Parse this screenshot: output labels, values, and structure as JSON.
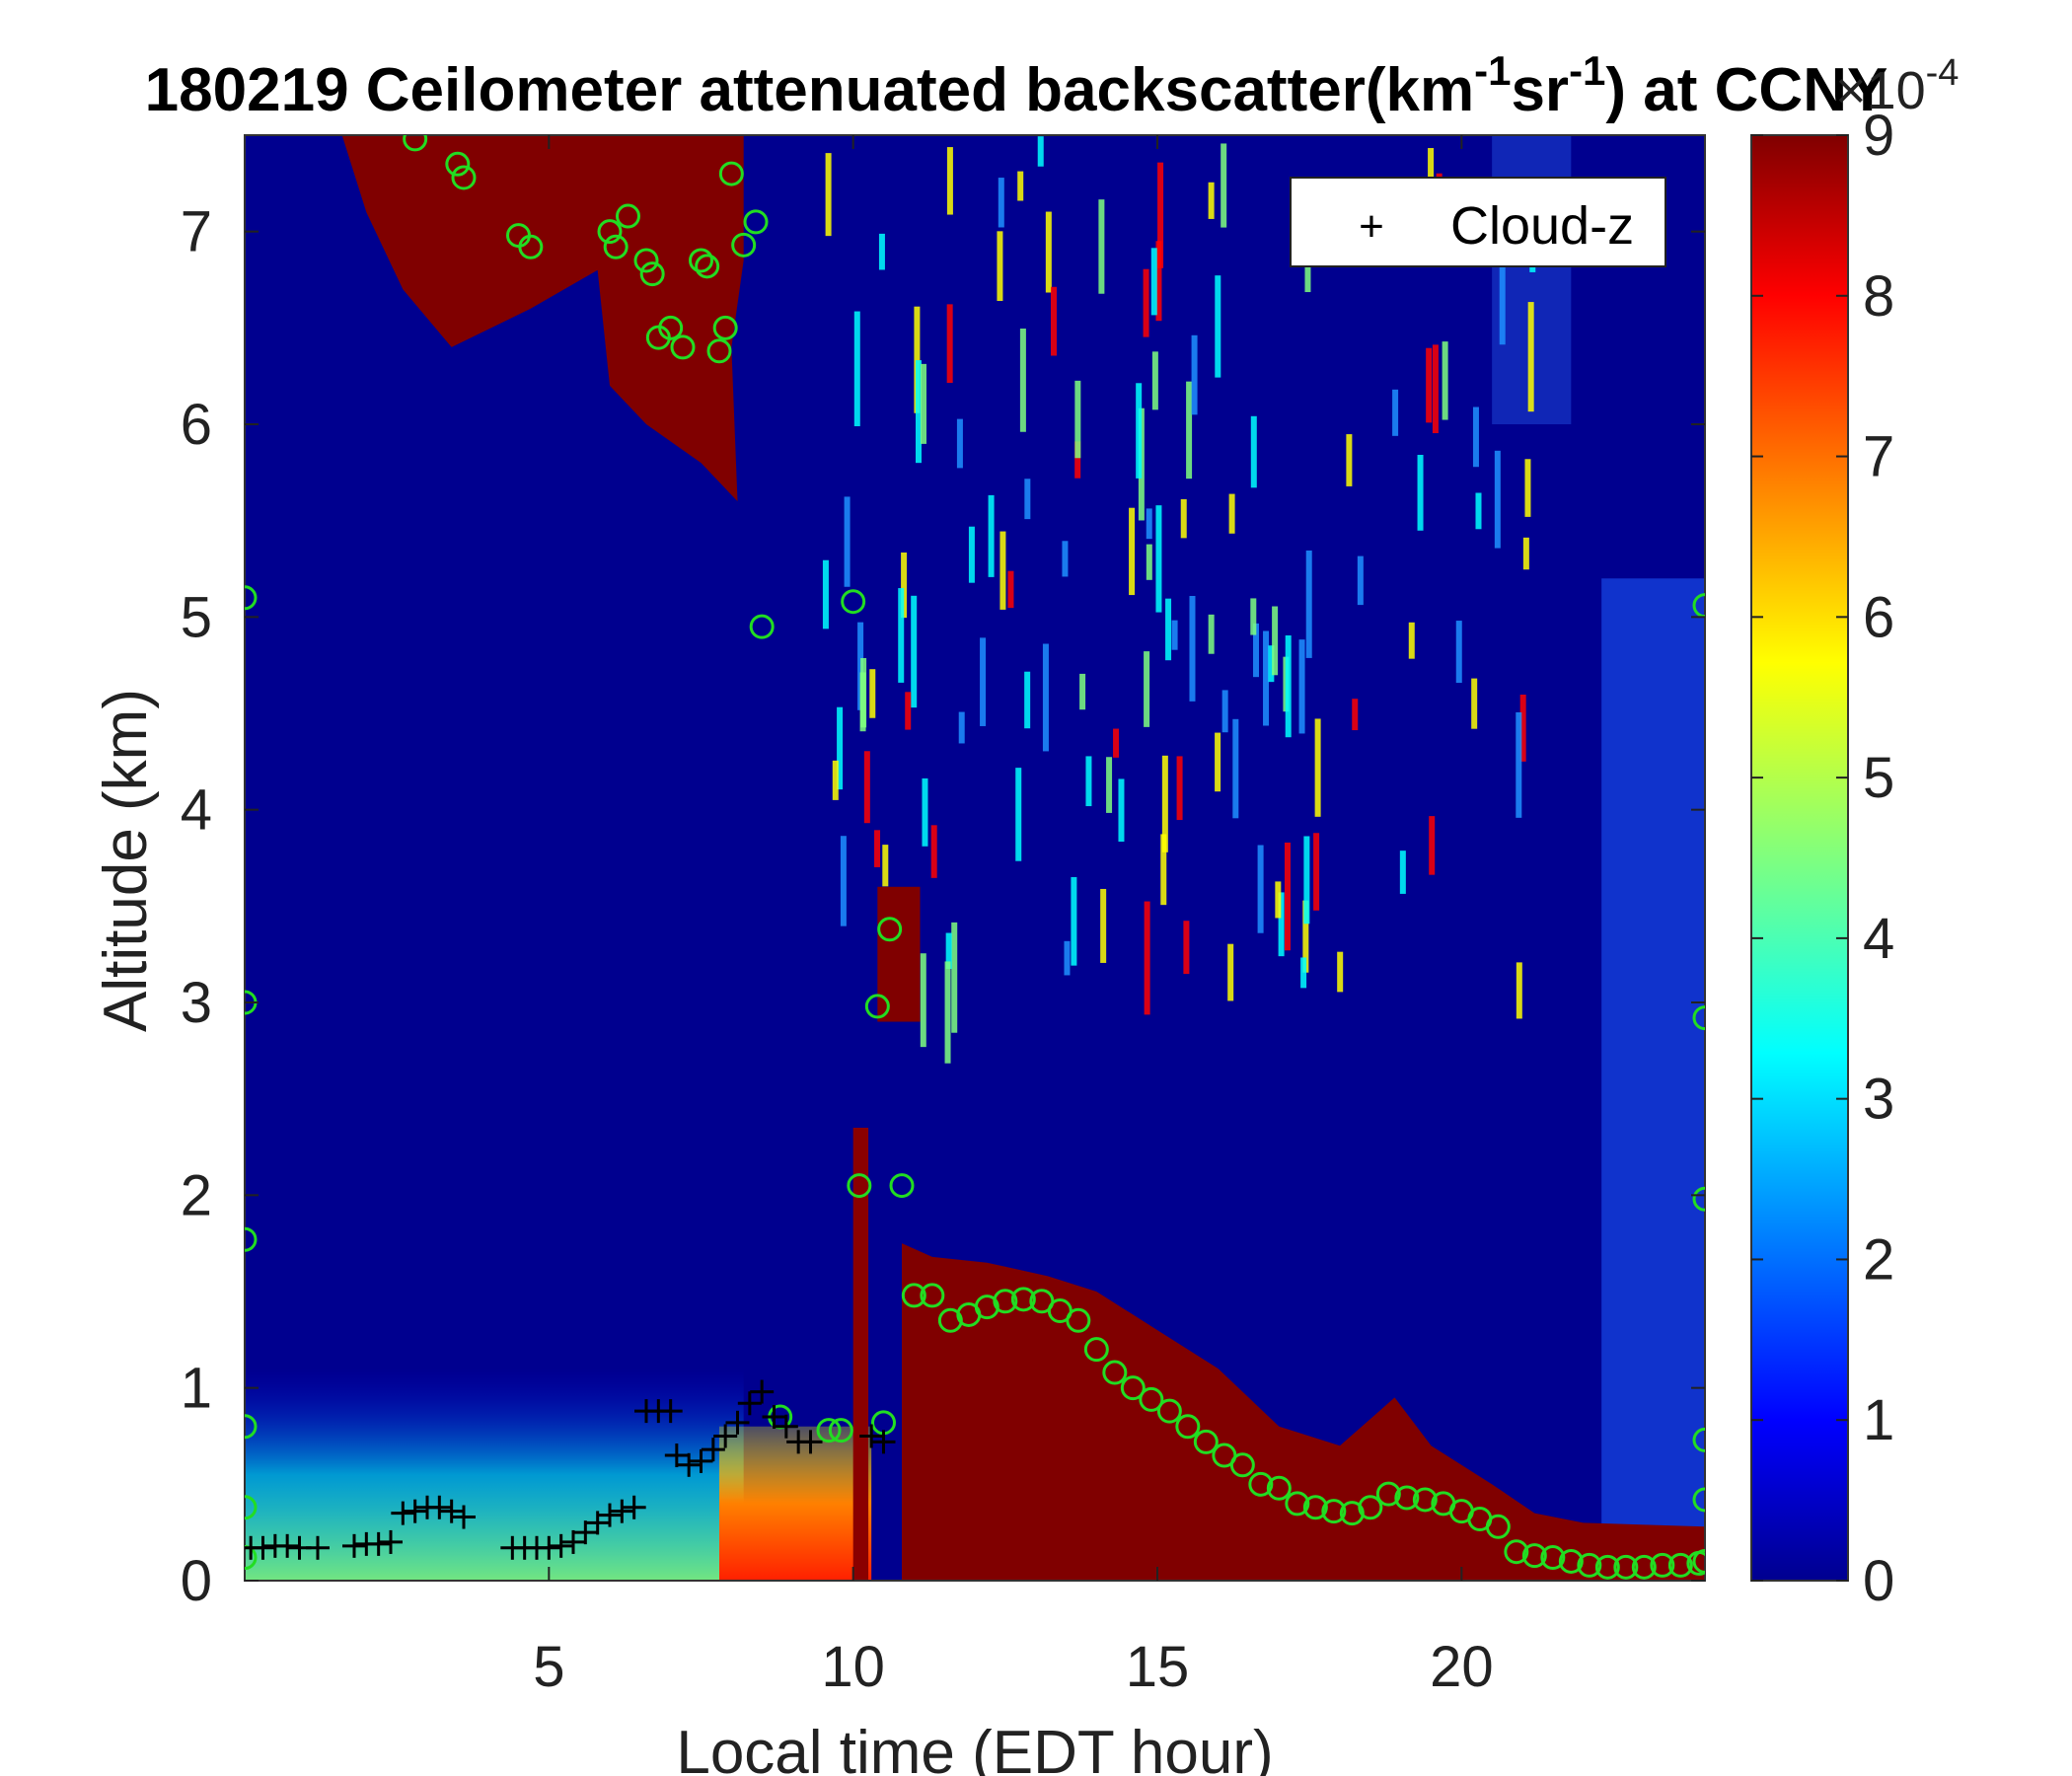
{
  "chart_data": {
    "type": "heatmap",
    "title": {
      "prefix": "180219 Ceilometer attenuated backscatter(km",
      "sup1": "-1",
      "mid": "sr",
      "sup2": "-1",
      "suffix": ") at CCNY"
    },
    "xlabel": "Local time (EDT hour)",
    "ylabel": "Altitude (km)",
    "xlim": [
      0,
      24
    ],
    "ylim": [
      0,
      7.5
    ],
    "xticks": [
      5,
      10,
      15,
      20
    ],
    "yticks": [
      0,
      1,
      2,
      3,
      4,
      5,
      6,
      7
    ],
    "colorbar": {
      "colormap": "jet",
      "clim": [
        0,
        9
      ],
      "ticks": [
        0,
        1,
        2,
        3,
        4,
        5,
        6,
        7,
        8,
        9
      ],
      "multiplier_base": "×10",
      "multiplier_exp": "-4"
    },
    "legend": {
      "position": "top-right",
      "entries": [
        {
          "marker": "+",
          "label": "Cloud-z"
        }
      ]
    },
    "colors": {
      "cloud_z": "#000000",
      "pbl_circles": "#22dd22"
    },
    "cloud_z_points": [
      [
        0.1,
        0.17
      ],
      [
        0.3,
        0.17
      ],
      [
        0.5,
        0.18
      ],
      [
        0.7,
        0.18
      ],
      [
        0.9,
        0.17
      ],
      [
        1.2,
        0.17
      ],
      [
        1.8,
        0.18
      ],
      [
        2.0,
        0.19
      ],
      [
        2.2,
        0.19
      ],
      [
        2.4,
        0.2
      ],
      [
        2.6,
        0.35
      ],
      [
        2.8,
        0.36
      ],
      [
        3.0,
        0.38
      ],
      [
        3.2,
        0.38
      ],
      [
        3.4,
        0.36
      ],
      [
        3.6,
        0.33
      ],
      [
        4.4,
        0.17
      ],
      [
        4.6,
        0.17
      ],
      [
        4.8,
        0.17
      ],
      [
        5.0,
        0.17
      ],
      [
        5.2,
        0.18
      ],
      [
        5.4,
        0.2
      ],
      [
        5.6,
        0.25
      ],
      [
        5.8,
        0.3
      ],
      [
        6.0,
        0.34
      ],
      [
        6.2,
        0.36
      ],
      [
        6.4,
        0.38
      ],
      [
        6.6,
        0.88
      ],
      [
        6.8,
        0.88
      ],
      [
        7.0,
        0.88
      ],
      [
        7.1,
        0.65
      ],
      [
        7.3,
        0.6
      ],
      [
        7.5,
        0.62
      ],
      [
        7.7,
        0.68
      ],
      [
        7.9,
        0.75
      ],
      [
        8.1,
        0.82
      ],
      [
        8.3,
        0.92
      ],
      [
        8.5,
        0.98
      ],
      [
        8.7,
        0.85
      ],
      [
        8.9,
        0.8
      ],
      [
        9.1,
        0.72
      ],
      [
        9.3,
        0.72
      ],
      [
        10.3,
        0.75
      ],
      [
        10.5,
        0.72
      ]
    ],
    "pbl_points": [
      [
        0,
        5.1
      ],
      [
        0,
        3
      ],
      [
        0,
        1.77
      ],
      [
        0,
        0.8
      ],
      [
        0,
        0.38
      ],
      [
        0,
        0.12
      ],
      [
        2.8,
        7.48
      ],
      [
        3.5,
        7.35
      ],
      [
        3.6,
        7.28
      ],
      [
        4.5,
        6.98
      ],
      [
        4.7,
        6.92
      ],
      [
        6.0,
        7.0
      ],
      [
        6.1,
        6.92
      ],
      [
        6.3,
        7.08
      ],
      [
        6.6,
        6.85
      ],
      [
        6.7,
        6.78
      ],
      [
        6.8,
        6.45
      ],
      [
        7.0,
        6.5
      ],
      [
        7.2,
        6.4
      ],
      [
        7.5,
        6.85
      ],
      [
        7.6,
        6.82
      ],
      [
        7.8,
        6.38
      ],
      [
        7.9,
        6.5
      ],
      [
        8.0,
        7.3
      ],
      [
        8.2,
        6.93
      ],
      [
        8.4,
        7.05
      ],
      [
        8.5,
        4.95
      ],
      [
        10.0,
        5.08
      ],
      [
        10.1,
        2.05
      ],
      [
        10.4,
        2.98
      ],
      [
        10.6,
        3.38
      ],
      [
        10.8,
        2.05
      ],
      [
        10.5,
        0.82
      ],
      [
        8.8,
        0.85
      ],
      [
        9.6,
        0.78
      ],
      [
        9.8,
        0.78
      ],
      [
        24,
        5.06
      ],
      [
        24,
        2.92
      ],
      [
        24,
        1.98
      ],
      [
        24,
        0.73
      ],
      [
        24,
        0.42
      ],
      [
        24,
        0.1
      ]
    ],
    "pbl_curve": [
      [
        11.0,
        1.48
      ],
      [
        11.3,
        1.48
      ],
      [
        11.6,
        1.35
      ],
      [
        11.9,
        1.38
      ],
      [
        12.2,
        1.42
      ],
      [
        12.5,
        1.45
      ],
      [
        12.8,
        1.46
      ],
      [
        13.1,
        1.45
      ],
      [
        13.4,
        1.4
      ],
      [
        13.7,
        1.35
      ],
      [
        14.0,
        1.2
      ],
      [
        14.3,
        1.08
      ],
      [
        14.6,
        1.0
      ],
      [
        14.9,
        0.94
      ],
      [
        15.2,
        0.88
      ],
      [
        15.5,
        0.8
      ],
      [
        15.8,
        0.72
      ],
      [
        16.1,
        0.65
      ],
      [
        16.4,
        0.6
      ],
      [
        16.7,
        0.5
      ],
      [
        17.0,
        0.48
      ],
      [
        17.3,
        0.4
      ],
      [
        17.6,
        0.38
      ],
      [
        17.9,
        0.36
      ],
      [
        18.2,
        0.35
      ],
      [
        18.5,
        0.38
      ],
      [
        18.8,
        0.45
      ],
      [
        19.1,
        0.43
      ],
      [
        19.4,
        0.42
      ],
      [
        19.7,
        0.4
      ],
      [
        20.0,
        0.36
      ],
      [
        20.3,
        0.32
      ],
      [
        20.6,
        0.28
      ],
      [
        20.9,
        0.15
      ],
      [
        21.2,
        0.13
      ],
      [
        21.5,
        0.12
      ],
      [
        21.8,
        0.1
      ],
      [
        22.1,
        0.08
      ],
      [
        22.4,
        0.07
      ],
      [
        22.7,
        0.07
      ],
      [
        23.0,
        0.07
      ],
      [
        23.3,
        0.08
      ],
      [
        23.6,
        0.08
      ],
      [
        23.9,
        0.09
      ]
    ]
  }
}
